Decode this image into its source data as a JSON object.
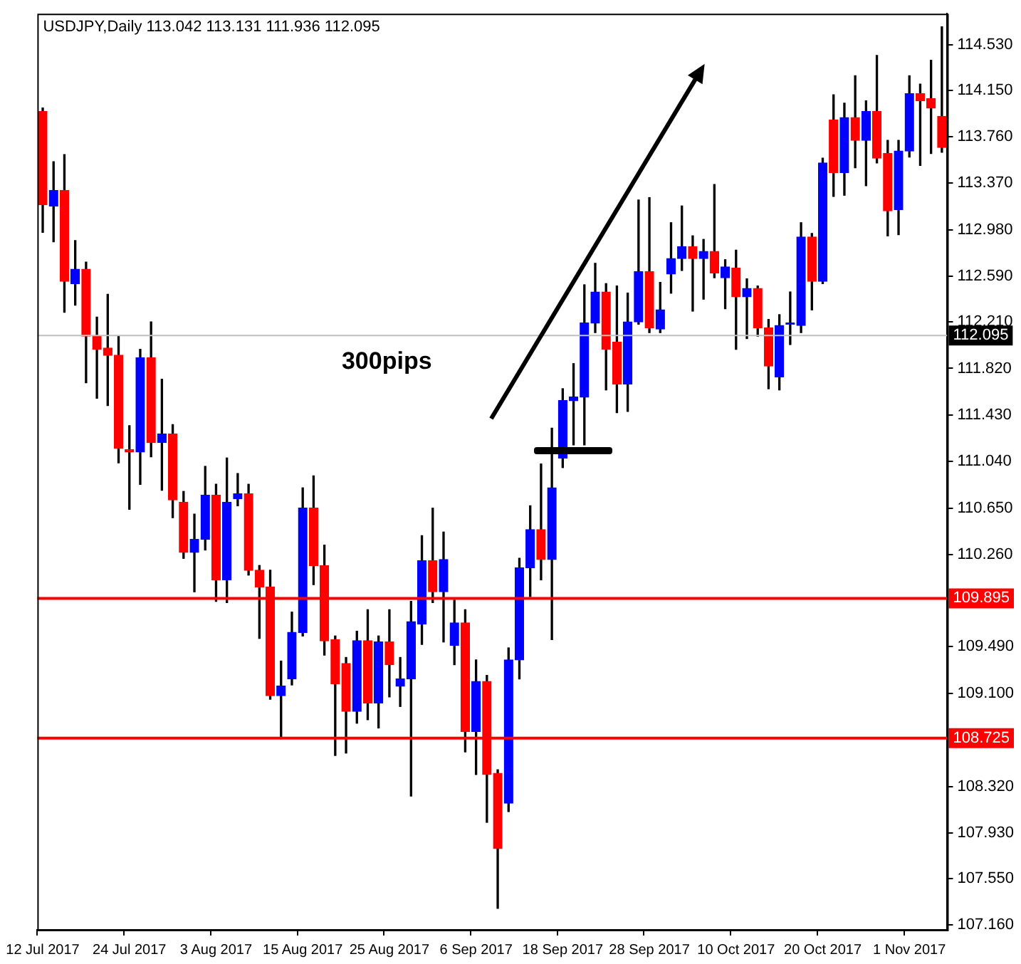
{
  "chart_data": {
    "type": "candlestick",
    "title": "USDJPY,Daily 113.042 113.131 111.936 112.095",
    "annotations": [
      "300pips"
    ],
    "categories": [
      "12 Jul 2017",
      null,
      null,
      null,
      null,
      null,
      null,
      null,
      "24 Jul 2017",
      null,
      null,
      null,
      null,
      null,
      null,
      null,
      "3 Aug 2017",
      null,
      null,
      null,
      null,
      null,
      null,
      null,
      "15 Aug 2017",
      null,
      null,
      null,
      null,
      null,
      null,
      null,
      "25 Aug 2017",
      null,
      null,
      null,
      null,
      null,
      null,
      null,
      "6 Sep 2017",
      null,
      null,
      null,
      null,
      null,
      null,
      null,
      "18 Sep 2017",
      null,
      null,
      null,
      null,
      null,
      null,
      null,
      "28 Sep 2017",
      null,
      null,
      null,
      null,
      null,
      null,
      null,
      "10 Oct 2017",
      null,
      null,
      null,
      null,
      null,
      null,
      null,
      "20 Oct 2017",
      null,
      null,
      null,
      null,
      null,
      null,
      null,
      "1 Nov 2017",
      null,
      null,
      null
    ],
    "ohlc": [
      [
        113.97,
        114.0,
        112.96,
        113.19
      ],
      [
        113.18,
        113.55,
        112.88,
        113.31
      ],
      [
        113.31,
        113.61,
        112.29,
        112.55
      ],
      [
        112.53,
        112.89,
        112.35,
        112.65
      ],
      [
        112.65,
        112.71,
        111.7,
        112.09
      ],
      [
        112.09,
        112.25,
        111.57,
        111.98
      ],
      [
        111.99,
        112.44,
        111.51,
        111.93
      ],
      [
        111.93,
        112.09,
        111.03,
        111.15
      ],
      [
        111.14,
        111.34,
        110.64,
        111.12
      ],
      [
        111.12,
        111.98,
        110.85,
        111.91
      ],
      [
        111.91,
        112.21,
        111.08,
        111.2
      ],
      [
        111.2,
        111.73,
        110.8,
        111.27
      ],
      [
        111.27,
        111.35,
        110.57,
        110.72
      ],
      [
        110.7,
        110.79,
        110.23,
        110.28
      ],
      [
        110.28,
        110.6,
        109.95,
        110.39
      ],
      [
        110.39,
        111.0,
        110.3,
        110.76
      ],
      [
        110.76,
        110.85,
        109.87,
        110.05
      ],
      [
        110.05,
        111.07,
        109.86,
        110.7
      ],
      [
        110.73,
        110.94,
        110.67,
        110.77
      ],
      [
        110.77,
        110.85,
        110.09,
        110.13
      ],
      [
        110.13,
        110.17,
        109.56,
        109.99
      ],
      [
        109.99,
        110.13,
        109.05,
        109.08
      ],
      [
        109.08,
        109.37,
        108.72,
        109.16
      ],
      [
        109.22,
        109.78,
        109.17,
        109.61
      ],
      [
        109.61,
        110.82,
        109.58,
        110.65
      ],
      [
        110.65,
        110.92,
        110.01,
        110.17
      ],
      [
        110.17,
        110.34,
        109.42,
        109.54
      ],
      [
        109.55,
        109.58,
        108.58,
        109.18
      ],
      [
        109.35,
        109.4,
        108.6,
        108.95
      ],
      [
        108.95,
        109.62,
        108.85,
        109.54
      ],
      [
        109.54,
        109.8,
        108.88,
        109.02
      ],
      [
        109.02,
        109.58,
        108.81,
        109.53
      ],
      [
        109.53,
        109.8,
        109.07,
        109.34
      ],
      [
        109.16,
        109.4,
        108.99,
        109.22
      ],
      [
        109.22,
        109.87,
        108.24,
        109.7
      ],
      [
        109.68,
        110.42,
        109.51,
        110.21
      ],
      [
        110.21,
        110.65,
        109.86,
        109.95
      ],
      [
        109.95,
        110.45,
        109.53,
        110.22
      ],
      [
        109.5,
        109.88,
        109.34,
        109.69
      ],
      [
        109.69,
        109.8,
        108.61,
        108.78
      ],
      [
        108.78,
        109.38,
        108.42,
        109.2
      ],
      [
        109.2,
        109.25,
        108.02,
        108.42
      ],
      [
        108.43,
        108.46,
        107.3,
        107.8
      ],
      [
        108.18,
        109.48,
        108.11,
        109.38
      ],
      [
        109.38,
        110.23,
        109.22,
        110.15
      ],
      [
        110.15,
        110.67,
        109.91,
        110.47
      ],
      [
        110.47,
        111.02,
        110.05,
        110.22
      ],
      [
        110.22,
        111.32,
        109.55,
        110.82
      ],
      [
        111.07,
        111.65,
        110.99,
        111.55
      ],
      [
        111.55,
        111.86,
        111.18,
        111.58
      ],
      [
        111.58,
        112.52,
        111.18,
        112.2
      ],
      [
        112.2,
        112.7,
        112.12,
        112.46
      ],
      [
        112.46,
        112.53,
        111.64,
        111.98
      ],
      [
        112.04,
        112.51,
        111.45,
        111.69
      ],
      [
        111.69,
        112.45,
        111.46,
        112.21
      ],
      [
        112.21,
        113.23,
        112.19,
        112.63
      ],
      [
        112.63,
        113.25,
        112.12,
        112.16
      ],
      [
        112.15,
        112.54,
        112.12,
        112.31
      ],
      [
        112.61,
        113.04,
        112.45,
        112.74
      ],
      [
        112.74,
        113.18,
        112.64,
        112.84
      ],
      [
        112.84,
        112.93,
        112.3,
        112.74
      ],
      [
        112.74,
        112.9,
        112.4,
        112.8
      ],
      [
        112.8,
        113.36,
        112.58,
        112.62
      ],
      [
        112.58,
        112.73,
        112.32,
        112.67
      ],
      [
        112.66,
        112.81,
        111.98,
        112.42
      ],
      [
        112.42,
        112.57,
        112.07,
        112.49
      ],
      [
        112.49,
        112.51,
        112.09,
        112.16
      ],
      [
        112.16,
        112.23,
        111.65,
        111.84
      ],
      [
        111.75,
        112.27,
        111.64,
        112.18
      ],
      [
        112.19,
        112.46,
        112.02,
        112.2
      ],
      [
        112.18,
        113.04,
        112.12,
        112.92
      ],
      [
        112.92,
        112.95,
        112.31,
        112.55
      ],
      [
        112.55,
        113.58,
        112.53,
        113.54
      ],
      [
        113.9,
        114.11,
        113.26,
        113.46
      ],
      [
        113.46,
        114.04,
        113.27,
        113.92
      ],
      [
        113.92,
        114.27,
        113.5,
        113.73
      ],
      [
        113.73,
        114.06,
        113.35,
        113.97
      ],
      [
        113.97,
        114.44,
        113.54,
        113.58
      ],
      [
        113.62,
        113.73,
        112.93,
        113.14
      ],
      [
        113.15,
        113.73,
        112.94,
        113.64
      ],
      [
        113.64,
        114.27,
        113.59,
        114.12
      ],
      [
        114.12,
        114.2,
        113.52,
        114.06
      ],
      [
        114.08,
        114.4,
        113.62,
        114.0
      ],
      [
        113.93,
        114.68,
        113.63,
        113.67
      ]
    ],
    "colors": [
      "#ff0000",
      "#0000ff",
      "#ff0000",
      "#0000ff",
      "#ff0000",
      "#ff0000",
      "#ff0000",
      "#ff0000",
      "#ff0000",
      "#0000ff",
      "#ff0000",
      "#0000ff",
      "#ff0000",
      "#ff0000",
      "#0000ff",
      "#0000ff",
      "#ff0000",
      "#0000ff",
      "#0000ff",
      "#ff0000",
      "#ff0000",
      "#ff0000",
      "#0000ff",
      "#0000ff",
      "#0000ff",
      "#ff0000",
      "#ff0000",
      "#ff0000",
      "#ff0000",
      "#0000ff",
      "#ff0000",
      "#0000ff",
      "#ff0000",
      "#0000ff",
      "#0000ff",
      "#0000ff",
      "#ff0000",
      "#0000ff",
      "#0000ff",
      "#ff0000",
      "#0000ff",
      "#ff0000",
      "#ff0000",
      "#0000ff",
      "#0000ff",
      "#0000ff",
      "#ff0000",
      "#0000ff",
      "#0000ff",
      "#0000ff",
      "#0000ff",
      "#0000ff",
      "#ff0000",
      "#ff0000",
      "#0000ff",
      "#0000ff",
      "#ff0000",
      "#0000ff",
      "#0000ff",
      "#0000ff",
      "#ff0000",
      "#0000ff",
      "#ff0000",
      "#0000ff",
      "#ff0000",
      "#0000ff",
      "#ff0000",
      "#ff0000",
      "#0000ff",
      "#0000ff",
      "#0000ff",
      "#ff0000",
      "#0000ff",
      "#ff0000",
      "#0000ff",
      "#ff0000",
      "#0000ff",
      "#ff0000",
      "#ff0000",
      "#0000ff",
      "#0000ff",
      "#ff0000",
      "#ff0000",
      "#ff0000"
    ],
    "ylim": [
      107.12,
      114.79
    ],
    "yticks": [
      {
        "value": 114.53,
        "label": "114.530"
      },
      {
        "value": 114.15,
        "label": "114.150"
      },
      {
        "value": 113.76,
        "label": "113.760"
      },
      {
        "value": 113.37,
        "label": "113.370"
      },
      {
        "value": 112.98,
        "label": "112.980"
      },
      {
        "value": 112.59,
        "label": "112.590"
      },
      {
        "value": 112.21,
        "label": "112.210"
      },
      {
        "value": 111.82,
        "label": "111.820"
      },
      {
        "value": 111.43,
        "label": "111.430"
      },
      {
        "value": 111.04,
        "label": "111.040"
      },
      {
        "value": 110.65,
        "label": "110.650"
      },
      {
        "value": 110.26,
        "label": "110.260"
      },
      {
        "value": 109.49,
        "label": "109.490"
      },
      {
        "value": 109.1,
        "label": "109.100"
      },
      {
        "value": 108.32,
        "label": "108.320"
      },
      {
        "value": 107.93,
        "label": "107.930"
      },
      {
        "value": 107.55,
        "label": "107.550"
      },
      {
        "value": 107.16,
        "label": "107.160"
      }
    ],
    "ref_lines": [
      {
        "axis": "y",
        "value": 112.095,
        "label": "112.095",
        "color": "#c0c0c0"
      },
      {
        "axis": "y",
        "value": 109.895,
        "label": "109.895",
        "color": "#ff0000"
      },
      {
        "axis": "y",
        "value": 108.725,
        "label": "108.725",
        "color": "#ff0000"
      }
    ]
  }
}
